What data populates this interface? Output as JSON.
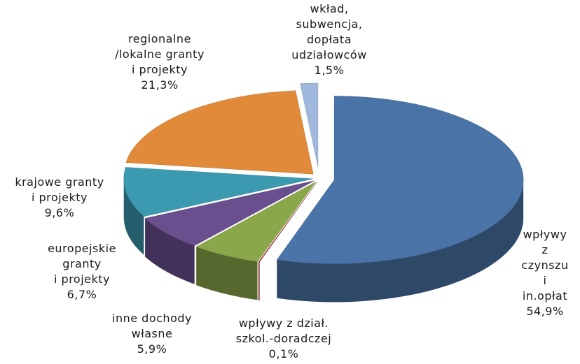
{
  "chart_data": {
    "type": "pie3d",
    "categories": [
      "wpływy\nz czynszu\ni in.opłat",
      "wpływy z dział.\nszkol.-doradczej",
      "inne dochody\nwłasne",
      "europejskie\ngranty\ni projekty",
      "krajowe granty\ni projekty",
      "regionalne\n/lokalne granty\ni projekty",
      "wkład,\nsubwencja,\ndopłata\nudziałowców"
    ],
    "values": [
      54.9,
      0.1,
      5.9,
      6.7,
      9.6,
      21.3,
      1.5
    ],
    "value_labels": [
      "54,9%",
      "0,1%",
      "5,9%",
      "6,7%",
      "9,6%",
      "21,3%",
      "1,5%"
    ],
    "colors": [
      "#4a74a8",
      "#b2403d",
      "#8aa84a",
      "#6a4f8e",
      "#3b9ab0",
      "#e08a3a",
      "#9fb8dc"
    ]
  }
}
